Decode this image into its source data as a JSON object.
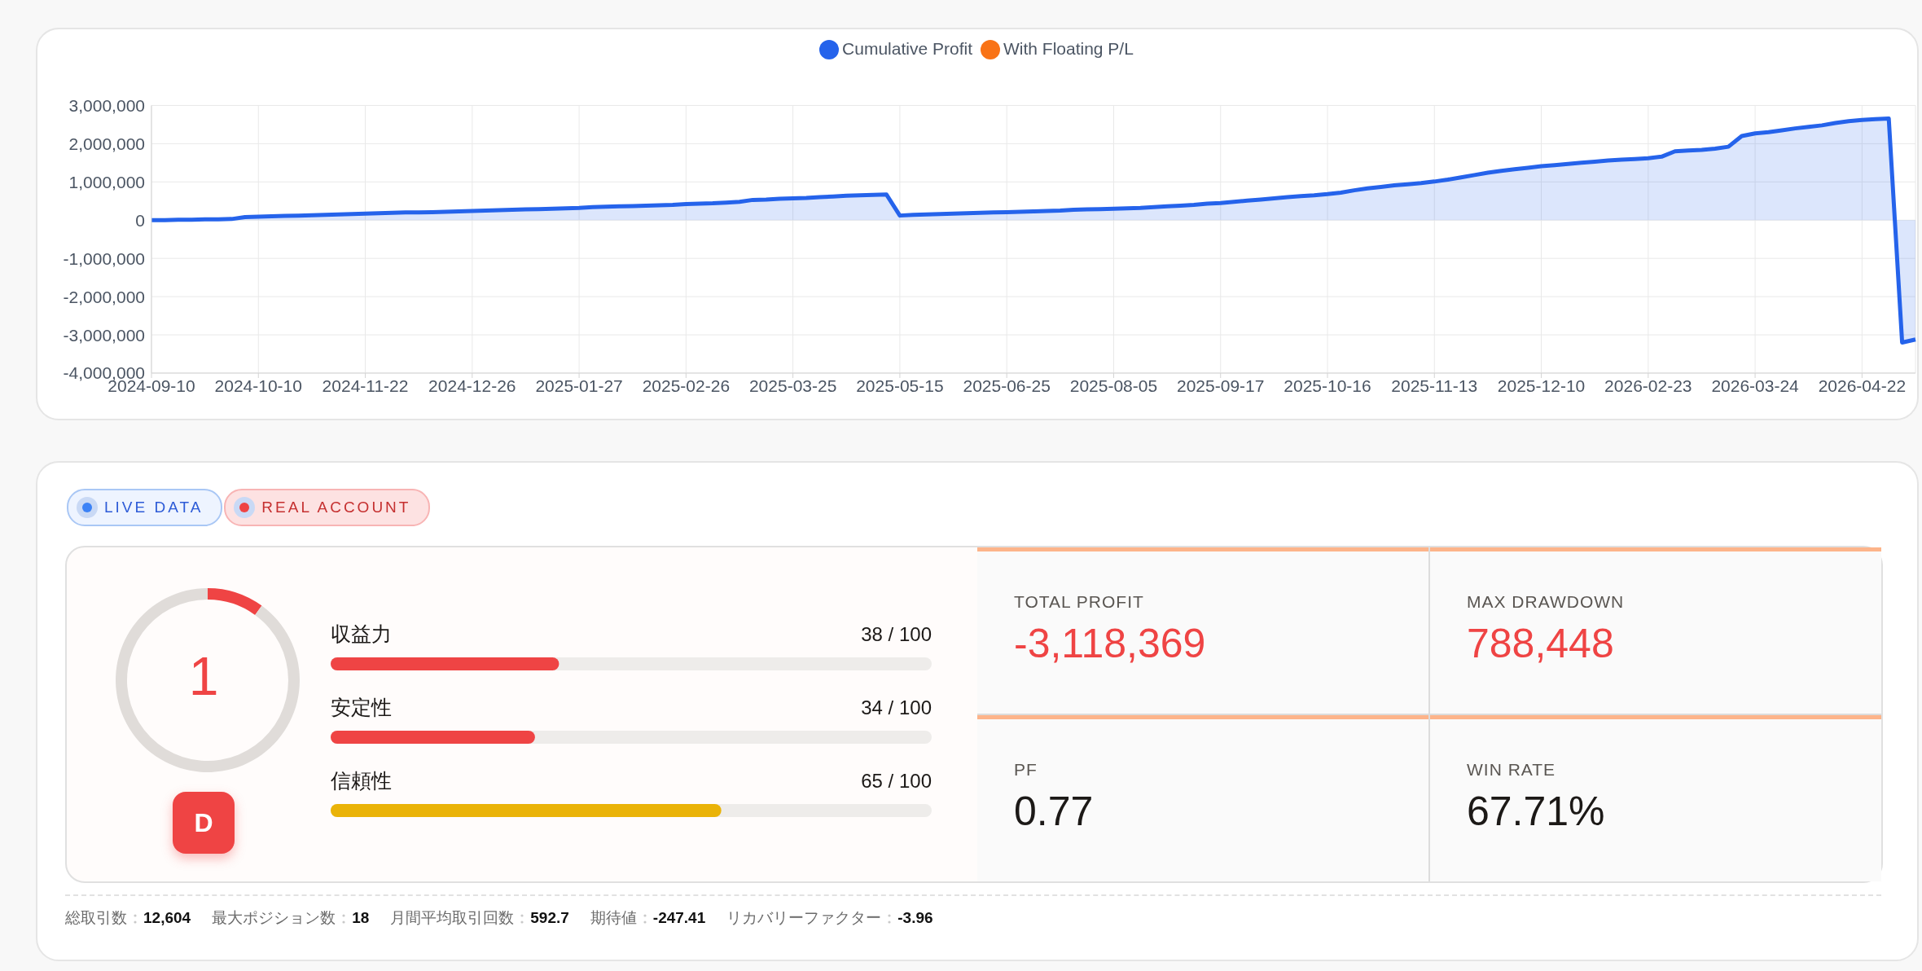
{
  "chart_data": [
    {
      "type": "area",
      "categories": [
        "2024-09-10",
        null,
        null,
        null,
        null,
        null,
        null,
        null,
        "2024-10-10",
        null,
        null,
        null,
        null,
        null,
        null,
        null,
        "2024-11-22",
        null,
        null,
        null,
        null,
        null,
        null,
        null,
        "2024-12-26",
        null,
        null,
        null,
        null,
        null,
        null,
        null,
        "2025-01-27",
        null,
        null,
        null,
        null,
        null,
        null,
        null,
        "2025-02-26",
        null,
        null,
        null,
        null,
        null,
        null,
        null,
        "2025-03-25",
        null,
        null,
        null,
        null,
        null,
        null,
        null,
        "2025-05-15",
        null,
        null,
        null,
        null,
        null,
        null,
        null,
        "2025-06-25",
        null,
        null,
        null,
        null,
        null,
        null,
        null,
        "2025-08-05",
        null,
        null,
        null,
        null,
        null,
        null,
        null,
        "2025-09-17",
        null,
        null,
        null,
        null,
        null,
        null,
        null,
        "2025-10-16",
        null,
        null,
        null,
        null,
        null,
        null,
        null,
        "2025-11-13",
        null,
        null,
        null,
        null,
        null,
        null,
        null,
        "2025-12-10",
        null,
        null,
        null,
        null,
        null,
        null,
        null,
        "2026-02-23",
        null,
        null,
        null,
        null,
        null,
        null,
        null,
        "2026-03-24",
        null,
        null,
        null,
        null,
        null,
        null,
        null,
        "2026-04-22",
        null,
        null,
        null,
        null
      ],
      "series": [
        {
          "name": "Cumulative Profit",
          "color": "#2563eb",
          "values": [
            0,
            0,
            10000,
            10000,
            20000,
            20000,
            30000,
            80000,
            90000,
            100000,
            110000,
            120000,
            130000,
            140000,
            150000,
            160000,
            170000,
            180000,
            190000,
            200000,
            200000,
            210000,
            220000,
            230000,
            240000,
            250000,
            260000,
            270000,
            280000,
            290000,
            300000,
            310000,
            320000,
            340000,
            350000,
            360000,
            370000,
            380000,
            390000,
            400000,
            420000,
            430000,
            440000,
            460000,
            480000,
            530000,
            540000,
            560000,
            570000,
            580000,
            600000,
            620000,
            640000,
            650000,
            660000,
            670000,
            120000,
            140000,
            150000,
            160000,
            170000,
            180000,
            190000,
            200000,
            210000,
            220000,
            230000,
            240000,
            250000,
            270000,
            280000,
            290000,
            300000,
            310000,
            320000,
            340000,
            360000,
            380000,
            400000,
            430000,
            450000,
            480000,
            510000,
            540000,
            570000,
            600000,
            630000,
            650000,
            680000,
            720000,
            780000,
            830000,
            870000,
            910000,
            940000,
            970000,
            1010000,
            1060000,
            1120000,
            1180000,
            1240000,
            1290000,
            1330000,
            1370000,
            1410000,
            1440000,
            1470000,
            1500000,
            1530000,
            1560000,
            1580000,
            1600000,
            1620000,
            1660000,
            1800000,
            1820000,
            1840000,
            1870000,
            1920000,
            2200000,
            2270000,
            2300000,
            2350000,
            2400000,
            2440000,
            2480000,
            2540000,
            2590000,
            2620000,
            2640000,
            2660000,
            -3200000,
            -3120000
          ]
        },
        {
          "name": "With Floating P/L",
          "color": "#f97316",
          "type": "line",
          "values": [
            null,
            null,
            null,
            null,
            null,
            null,
            null,
            null,
            null,
            null,
            null,
            null,
            null,
            null,
            null,
            null,
            null,
            null,
            null,
            null,
            null,
            null,
            null,
            null,
            null,
            null,
            null,
            null,
            null,
            null,
            null,
            null,
            null,
            null,
            null,
            null,
            null,
            null,
            null,
            null,
            null,
            null,
            null,
            null,
            null,
            null,
            null,
            null,
            null,
            null,
            null,
            null,
            null,
            null,
            null,
            null,
            null,
            null,
            null,
            null,
            null,
            null,
            null,
            null,
            null,
            null,
            null,
            null,
            null,
            null,
            null,
            null,
            null,
            null,
            null,
            null,
            null,
            null,
            null,
            null,
            null,
            null,
            null,
            null,
            null,
            null,
            null,
            null,
            null,
            null,
            null,
            null,
            null,
            null,
            null,
            null,
            null,
            null,
            null,
            null,
            null,
            null,
            null,
            null,
            null,
            null,
            null,
            null,
            null,
            null,
            null,
            null,
            null,
            null,
            null,
            null,
            null,
            null,
            null,
            null,
            null,
            null,
            null,
            null,
            null,
            null,
            null,
            null,
            null,
            null,
            null,
            null,
            null
          ]
        }
      ],
      "ylim": [
        -4000000,
        3000000
      ],
      "yticks": [
        {
          "value": -4000000,
          "label": "-4,000,000"
        },
        {
          "value": -3000000,
          "label": "-3,000,000"
        },
        {
          "value": -2000000,
          "label": "-2,000,000"
        },
        {
          "value": -1000000,
          "label": "-1,000,000"
        },
        0,
        {
          "value": 1000000,
          "label": "1,000,000"
        },
        {
          "value": 2000000,
          "label": "2,000,000"
        },
        {
          "value": 3000000,
          "label": "3,000,000"
        }
      ],
      "grid": true,
      "legend": "top"
    },
    {
      "type": "other",
      "annotations": [
        "LIVE DATA",
        "REAL ACCOUNT"
      ]
    },
    {
      "type": "donut",
      "categories": [
        null,
        null
      ],
      "values": [
        10,
        90
      ],
      "colors": [
        "#ef4444",
        "#e0dcd9"
      ],
      "annotations": [
        "1",
        "D"
      ]
    },
    {
      "type": "bar",
      "orientation": "horizontal",
      "categories": [
        "収益力",
        "安定性",
        "信頼性"
      ],
      "values": [
        38,
        34,
        65
      ],
      "colors": [
        "#ef4444",
        "#ef4444",
        "#eab308"
      ],
      "xlim": [
        0,
        100
      ],
      "value_labels": [
        "38 / 100",
        "34 / 100",
        "65 / 100"
      ],
      "tick_labels": false
    },
    {
      "type": "other",
      "categories": [
        "TOTAL PROFIT",
        "MAX DRAWDOWN",
        "PF",
        "WIN RATE"
      ],
      "value_labels": [
        "-3,118,369",
        "788,448",
        "0.77",
        "67.71%"
      ]
    },
    {
      "type": "other",
      "categories": [
        "総取引数",
        "最大ポジション数",
        "月間平均取引回数",
        "期待値",
        "リカバリーファクター"
      ],
      "value_labels": [
        "12,604",
        "18",
        "592.7",
        "-247.41",
        "-3.96"
      ]
    }
  ]
}
